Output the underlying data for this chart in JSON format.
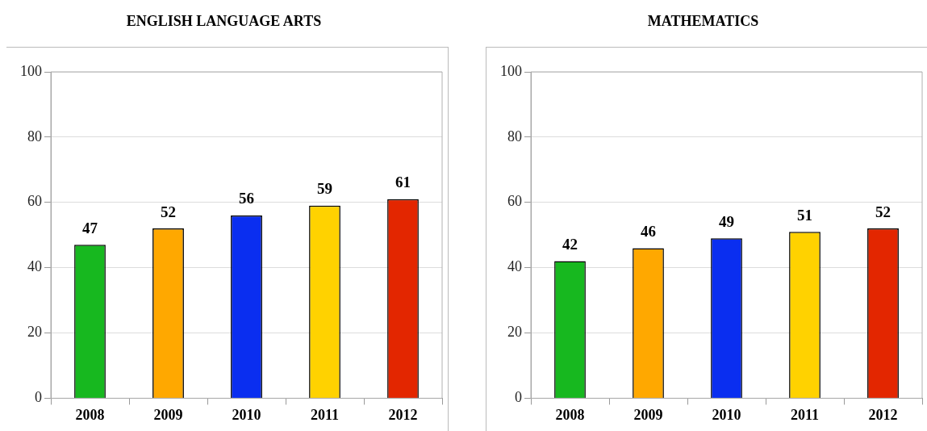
{
  "chart_data": [
    {
      "type": "bar",
      "title": "ENGLISH LANGUAGE ARTS",
      "categories": [
        "2008",
        "2009",
        "2010",
        "2011",
        "2012"
      ],
      "values": [
        47,
        52,
        56,
        59,
        61
      ],
      "colors": [
        "#17b81f",
        "#ffa800",
        "#0a2ef0",
        "#ffd200",
        "#e32600"
      ],
      "ylim": [
        0,
        100
      ],
      "yticks": [
        0,
        20,
        40,
        60,
        80,
        100
      ],
      "grid": "y",
      "data_labels": true
    },
    {
      "type": "bar",
      "title": "MATHEMATICS",
      "categories": [
        "2008",
        "2009",
        "2010",
        "2011",
        "2012"
      ],
      "values": [
        42,
        46,
        49,
        51,
        52
      ],
      "colors": [
        "#17b81f",
        "#ffa800",
        "#0a2ef0",
        "#ffd200",
        "#e32600"
      ],
      "ylim": [
        0,
        100
      ],
      "yticks": [
        0,
        20,
        40,
        60,
        80,
        100
      ],
      "grid": "y",
      "data_labels": true
    }
  ]
}
